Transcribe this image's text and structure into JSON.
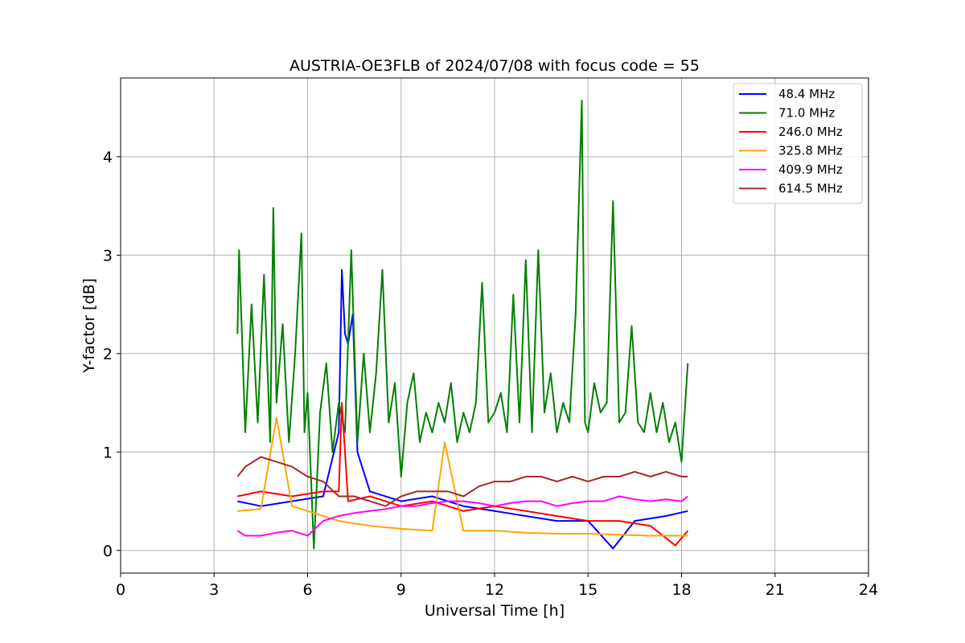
{
  "chart_data": {
    "type": "line",
    "title": "AUSTRIA-OE3FLB of 2024/07/08 with focus code = 55",
    "xlabel": "Universal Time [h]",
    "ylabel": "Y-factor [dB]",
    "xlim": [
      0,
      24
    ],
    "ylim": [
      -0.23,
      4.8
    ],
    "xticks": [
      0,
      3,
      6,
      9,
      12,
      15,
      18,
      21,
      24
    ],
    "yticks": [
      0,
      1,
      2,
      3,
      4
    ],
    "grid": true,
    "legend_position": "top-right",
    "series": [
      {
        "name": " 48.4 MHz",
        "color": "#0000ff",
        "x": [
          3.75,
          4.5,
          5.5,
          6.5,
          7.0,
          7.1,
          7.2,
          7.3,
          7.45,
          7.6,
          8.0,
          9.0,
          10.0,
          11.0,
          12.0,
          13.0,
          14.0,
          15.0,
          15.8,
          16.5,
          17.5,
          18.2
        ],
        "y": [
          0.5,
          0.45,
          0.5,
          0.55,
          1.2,
          2.85,
          2.2,
          2.1,
          2.4,
          1.0,
          0.6,
          0.5,
          0.55,
          0.45,
          0.4,
          0.35,
          0.3,
          0.3,
          0.02,
          0.3,
          0.35,
          0.4
        ]
      },
      {
        "name": " 71.0 MHz",
        "color": "#008000",
        "x": [
          3.75,
          3.8,
          4.0,
          4.2,
          4.4,
          4.6,
          4.8,
          4.9,
          5.0,
          5.2,
          5.4,
          5.6,
          5.8,
          5.9,
          6.0,
          6.2,
          6.4,
          6.6,
          6.8,
          7.0,
          7.2,
          7.4,
          7.6,
          7.8,
          8.0,
          8.2,
          8.4,
          8.6,
          8.8,
          9.0,
          9.2,
          9.4,
          9.6,
          9.8,
          10.0,
          10.2,
          10.4,
          10.6,
          10.8,
          11.0,
          11.2,
          11.4,
          11.6,
          11.8,
          12.0,
          12.2,
          12.4,
          12.6,
          12.8,
          13.0,
          13.2,
          13.4,
          13.6,
          13.8,
          14.0,
          14.2,
          14.4,
          14.6,
          14.8,
          14.9,
          15.0,
          15.2,
          15.4,
          15.6,
          15.8,
          16.0,
          16.2,
          16.4,
          16.6,
          16.8,
          17.0,
          17.2,
          17.4,
          17.6,
          17.8,
          18.0,
          18.2
        ],
        "y": [
          2.2,
          3.05,
          1.2,
          2.5,
          1.3,
          2.8,
          1.1,
          3.48,
          1.5,
          2.3,
          1.1,
          2.0,
          3.22,
          1.2,
          1.6,
          0.02,
          1.4,
          1.9,
          1.0,
          1.5,
          1.2,
          3.05,
          1.1,
          2.0,
          1.2,
          1.8,
          2.85,
          1.3,
          1.7,
          0.75,
          1.5,
          1.8,
          1.1,
          1.4,
          1.2,
          1.5,
          1.3,
          1.7,
          1.1,
          1.4,
          1.2,
          1.5,
          2.72,
          1.3,
          1.4,
          1.6,
          1.2,
          2.6,
          1.3,
          2.95,
          1.2,
          3.05,
          1.4,
          1.8,
          1.2,
          1.5,
          1.3,
          2.4,
          4.57,
          1.3,
          1.2,
          1.7,
          1.4,
          1.5,
          3.55,
          1.3,
          1.4,
          2.28,
          1.3,
          1.2,
          1.6,
          1.2,
          1.5,
          1.1,
          1.3,
          0.9,
          1.9
        ]
      },
      {
        "name": "246.0 MHz",
        "color": "#ff0000",
        "x": [
          3.75,
          4.5,
          5.5,
          6.5,
          7.0,
          7.1,
          7.3,
          8.0,
          9.0,
          10.0,
          11.0,
          12.0,
          13.0,
          14.0,
          15.0,
          16.0,
          17.0,
          17.8,
          18.2
        ],
        "y": [
          0.55,
          0.6,
          0.55,
          0.6,
          0.6,
          1.5,
          0.5,
          0.55,
          0.45,
          0.5,
          0.4,
          0.45,
          0.4,
          0.35,
          0.3,
          0.3,
          0.25,
          0.05,
          0.2
        ]
      },
      {
        "name": "325.8 MHz",
        "color": "#ffa500",
        "x": [
          3.75,
          4.5,
          5.0,
          5.5,
          6.0,
          6.5,
          7.0,
          8.0,
          9.0,
          10.0,
          10.4,
          11.0,
          12.0,
          13.0,
          14.0,
          15.0,
          16.0,
          17.0,
          18.2
        ],
        "y": [
          0.4,
          0.42,
          1.35,
          0.45,
          0.4,
          0.35,
          0.3,
          0.25,
          0.22,
          0.2,
          1.1,
          0.2,
          0.2,
          0.18,
          0.17,
          0.17,
          0.16,
          0.15,
          0.15
        ]
      },
      {
        "name": "409.9 MHz",
        "color": "#ff00ff",
        "x": [
          3.75,
          4.0,
          4.5,
          5.0,
          5.5,
          6.0,
          6.5,
          7.0,
          7.5,
          8.0,
          8.5,
          9.0,
          9.5,
          10.0,
          10.5,
          11.0,
          11.5,
          12.0,
          12.5,
          13.0,
          13.5,
          14.0,
          14.5,
          15.0,
          15.5,
          16.0,
          16.5,
          17.0,
          17.5,
          18.0,
          18.2
        ],
        "y": [
          0.2,
          0.15,
          0.15,
          0.18,
          0.2,
          0.15,
          0.3,
          0.35,
          0.38,
          0.4,
          0.42,
          0.45,
          0.45,
          0.48,
          0.5,
          0.5,
          0.48,
          0.45,
          0.48,
          0.5,
          0.5,
          0.45,
          0.48,
          0.5,
          0.5,
          0.55,
          0.52,
          0.5,
          0.52,
          0.5,
          0.55
        ]
      },
      {
        "name": "614.5 MHz",
        "color": "#a52a2a",
        "x": [
          3.75,
          4.0,
          4.5,
          5.0,
          5.5,
          6.0,
          6.5,
          7.0,
          7.5,
          8.0,
          8.5,
          9.0,
          9.5,
          10.0,
          10.5,
          11.0,
          11.5,
          12.0,
          12.5,
          13.0,
          13.5,
          14.0,
          14.5,
          15.0,
          15.5,
          16.0,
          16.5,
          17.0,
          17.5,
          18.0,
          18.2
        ],
        "y": [
          0.75,
          0.85,
          0.95,
          0.9,
          0.85,
          0.75,
          0.7,
          0.55,
          0.55,
          0.5,
          0.45,
          0.55,
          0.6,
          0.6,
          0.6,
          0.55,
          0.65,
          0.7,
          0.7,
          0.75,
          0.75,
          0.7,
          0.75,
          0.7,
          0.75,
          0.75,
          0.8,
          0.75,
          0.8,
          0.75,
          0.75
        ]
      }
    ]
  }
}
